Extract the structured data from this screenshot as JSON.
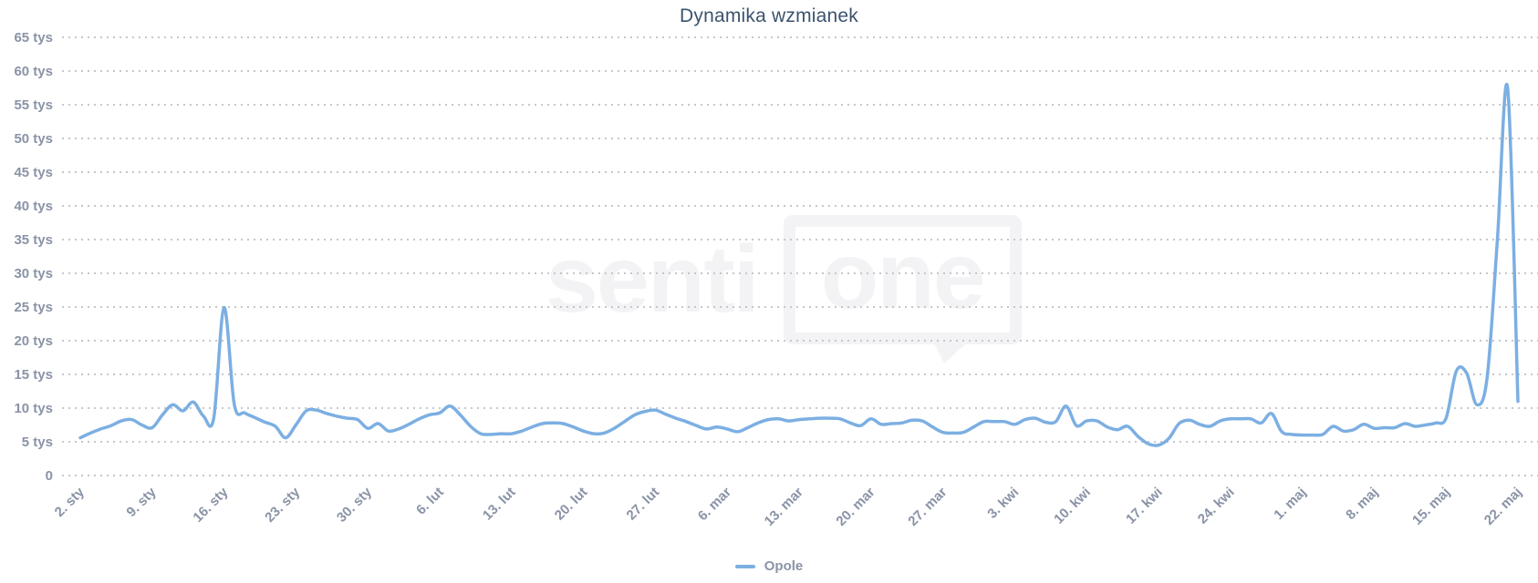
{
  "watermark": {
    "text_left": "senti",
    "text_right": "one"
  },
  "chart_data": {
    "type": "line",
    "title": "Dynamika wzmianek",
    "unit": "tys",
    "x_frequency": "daily",
    "x_start": "2. sty",
    "x_end": "22. maj",
    "x_tick_interval_days": 7,
    "x_tick_labels": [
      "2. sty",
      "9. sty",
      "16. sty",
      "23. sty",
      "30. sty",
      "6. lut",
      "13. lut",
      "20. lut",
      "27. lut",
      "6. mar",
      "13. mar",
      "20. mar",
      "27. mar",
      "3. kwi",
      "10. kwi",
      "17. kwi",
      "24. kwi",
      "1. maj",
      "8. maj",
      "15. maj",
      "22. maj"
    ],
    "y_tick_labels": [
      "0",
      "5 tys",
      "10 tys",
      "15 tys",
      "20 tys",
      "25 tys",
      "30 tys",
      "35 tys",
      "40 tys",
      "45 tys",
      "50 tys",
      "55 tys",
      "60 tys",
      "65 tys"
    ],
    "ylim": [
      0,
      65
    ],
    "ytick_step": 5,
    "grid": "dotted horizontal lines, no vertical grid",
    "legend_position": "bottom center",
    "series": [
      {
        "name": "Opole",
        "color": "#7cafe2",
        "values_unit": "tys",
        "values": [
          5.6,
          6.3,
          6.9,
          7.4,
          8.1,
          8.3,
          7.5,
          7.1,
          9.0,
          10.5,
          9.6,
          10.9,
          8.8,
          8.5,
          24.9,
          10.5,
          9.3,
          8.6,
          7.9,
          7.3,
          5.6,
          7.5,
          9.6,
          9.7,
          9.2,
          8.8,
          8.5,
          8.3,
          7.0,
          7.7,
          6.6,
          6.9,
          7.6,
          8.4,
          9.0,
          9.3,
          10.3,
          9.0,
          7.3,
          6.2,
          6.1,
          6.2,
          6.2,
          6.6,
          7.2,
          7.7,
          7.8,
          7.7,
          7.2,
          6.6,
          6.2,
          6.3,
          7.0,
          8.0,
          9.0,
          9.5,
          9.7,
          9.1,
          8.5,
          8.0,
          7.4,
          6.9,
          7.2,
          6.9,
          6.5,
          7.1,
          7.8,
          8.3,
          8.4,
          8.1,
          8.3,
          8.4,
          8.5,
          8.5,
          8.4,
          7.8,
          7.4,
          8.4,
          7.6,
          7.7,
          7.8,
          8.2,
          8.1,
          7.2,
          6.4,
          6.3,
          6.4,
          7.2,
          8.0,
          8.0,
          8.0,
          7.6,
          8.3,
          8.5,
          7.9,
          8.0,
          10.3,
          7.4,
          8.1,
          8.1,
          7.2,
          6.8,
          7.3,
          5.8,
          4.7,
          4.5,
          5.5,
          7.7,
          8.2,
          7.6,
          7.3,
          8.1,
          8.4,
          8.4,
          8.4,
          7.8,
          9.2,
          6.5,
          6.1,
          6.0,
          6.0,
          6.1,
          7.3,
          6.6,
          6.8,
          7.6,
          7.0,
          7.1,
          7.1,
          7.7,
          7.3,
          7.5,
          7.8,
          8.5,
          15.5,
          15.2,
          10.5,
          14.5,
          35.0,
          57.5,
          11.0
        ]
      }
    ]
  }
}
